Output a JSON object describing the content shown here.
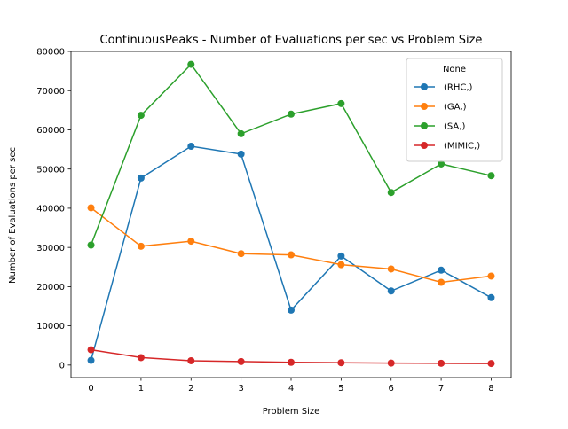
{
  "chart_data": {
    "type": "line",
    "title": "ContinuousPeaks - Number of Evaluations per sec vs Problem Size",
    "xlabel": "Problem Size",
    "ylabel": "Number of Evaluations per sec",
    "x": [
      0,
      1,
      2,
      3,
      4,
      5,
      6,
      7,
      8
    ],
    "xlim": [
      -0.4,
      8.4
    ],
    "ylim": [
      -3200,
      80000
    ],
    "xticks": [
      "0",
      "1",
      "2",
      "3",
      "4",
      "5",
      "6",
      "7",
      "8"
    ],
    "yticks": [
      "0",
      "10000",
      "20000",
      "30000",
      "40000",
      "50000",
      "60000",
      "70000",
      "80000"
    ],
    "grid": false,
    "legend": {
      "title": "None",
      "placement": "top-right"
    },
    "series": [
      {
        "name": "(RHC,)",
        "color": "#1f77b4",
        "values": [
          1200,
          47700,
          55800,
          53800,
          14000,
          27800,
          18900,
          24200,
          17200
        ]
      },
      {
        "name": "(GA,)",
        "color": "#ff7f0e",
        "values": [
          40100,
          30300,
          31600,
          28400,
          28100,
          25600,
          24500,
          21100,
          22700
        ]
      },
      {
        "name": "(SA,)",
        "color": "#2ca02c",
        "values": [
          30600,
          63700,
          76700,
          59000,
          64000,
          66700,
          44000,
          51300,
          48300
        ]
      },
      {
        "name": "(MIMIC,)",
        "color": "#d62728",
        "values": [
          3900,
          1900,
          1100,
          900,
          700,
          600,
          500,
          450,
          400
        ]
      }
    ]
  }
}
